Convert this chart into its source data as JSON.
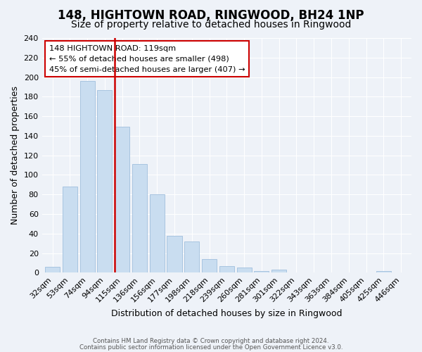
{
  "title": "148, HIGHTOWN ROAD, RINGWOOD, BH24 1NP",
  "subtitle": "Size of property relative to detached houses in Ringwood",
  "xlabel": "Distribution of detached houses by size in Ringwood",
  "ylabel": "Number of detached properties",
  "bar_labels": [
    "32sqm",
    "53sqm",
    "74sqm",
    "94sqm",
    "115sqm",
    "136sqm",
    "156sqm",
    "177sqm",
    "198sqm",
    "218sqm",
    "239sqm",
    "260sqm",
    "281sqm",
    "301sqm",
    "322sqm",
    "343sqm",
    "363sqm",
    "384sqm",
    "405sqm",
    "425sqm",
    "446sqm"
  ],
  "bar_values": [
    6,
    88,
    196,
    187,
    149,
    111,
    80,
    38,
    32,
    14,
    7,
    5,
    2,
    3,
    0,
    0,
    0,
    0,
    0,
    2,
    0
  ],
  "bar_color": "#c9ddf0",
  "bar_edge_color": "#a8c4e0",
  "vline_color": "#cc0000",
  "annotation_line1": "148 HIGHTOWN ROAD: 119sqm",
  "annotation_line2": "← 55% of detached houses are smaller (498)",
  "annotation_line3": "45% of semi-detached houses are larger (407) →",
  "annotation_box_color": "white",
  "annotation_box_edge_color": "#cc0000",
  "ylim": [
    0,
    240
  ],
  "yticks": [
    0,
    20,
    40,
    60,
    80,
    100,
    120,
    140,
    160,
    180,
    200,
    220,
    240
  ],
  "footer_line1": "Contains HM Land Registry data © Crown copyright and database right 2024.",
  "footer_line2": "Contains public sector information licensed under the Open Government Licence v3.0.",
  "background_color": "#eef2f8",
  "grid_color": "#ffffff",
  "title_fontsize": 12,
  "subtitle_fontsize": 10,
  "tick_fontsize": 8,
  "ylabel_fontsize": 9,
  "xlabel_fontsize": 9
}
